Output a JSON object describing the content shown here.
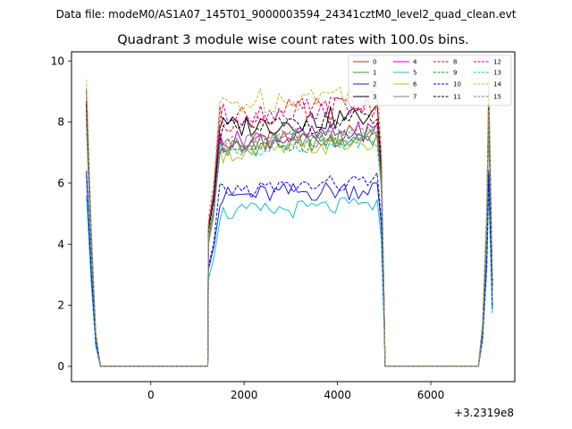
{
  "chart_data": {
    "type": "line",
    "suptitle": "Data file: modeM0/AS1A07_145T01_9000003594_24341cztM0_level2_quad_clean.evt",
    "title": "Quadrant 3 module wise count rates with 100.0s bins.",
    "xlabel": "",
    "ylabel": "",
    "x_offset_label": "+3.2319e8",
    "xlim": [
      -1700,
      7800
    ],
    "ylim": [
      -0.5,
      10.3
    ],
    "xticks": [
      0,
      2000,
      4000,
      6000
    ],
    "yticks": [
      0,
      2,
      4,
      6,
      8,
      10
    ],
    "xtick_labels": [
      "0",
      "2000",
      "4000",
      "6000"
    ],
    "ytick_labels": [
      "0",
      "2",
      "4",
      "6",
      "8",
      "10"
    ],
    "legend_position": "upper-right",
    "grid": false,
    "segments": [
      {
        "start": -1380,
        "end": -1080
      },
      {
        "start": 1220,
        "end": 5020
      },
      {
        "start": 7020,
        "end": 7320
      }
    ],
    "series": [
      {
        "name": "0",
        "color": "#d62728",
        "dash": false,
        "plateau": 7.5,
        "peak_a": 8.2,
        "peak_c": 8.5,
        "amp": 0.35
      },
      {
        "name": "1",
        "color": "#2ca02c",
        "dash": false,
        "plateau": 7.4,
        "peak_a": 8.0,
        "peak_c": 8.1,
        "amp": 0.35
      },
      {
        "name": "2",
        "color": "#1f1fd6",
        "dash": false,
        "plateau": 5.75,
        "peak_a": 6.3,
        "peak_c": 6.4,
        "amp": 0.35
      },
      {
        "name": "3",
        "color": "#000000",
        "dash": false,
        "plateau": 8.1,
        "peak_a": 8.7,
        "peak_c": 8.9,
        "amp": 0.4
      },
      {
        "name": "4",
        "color": "#bf00bf",
        "dash": false,
        "plateau": 7.6,
        "peak_a": 8.4,
        "peak_c": 8.3,
        "amp": 0.35
      },
      {
        "name": "5",
        "color": "#17becf",
        "dash": false,
        "plateau": 5.2,
        "peak_a": 5.6,
        "peak_c": 5.8,
        "amp": 0.3
      },
      {
        "name": "6",
        "color": "#bcbd22",
        "dash": false,
        "plateau": 7.2,
        "peak_a": 7.9,
        "peak_c": 8.0,
        "amp": 0.3
      },
      {
        "name": "7",
        "color": "#7f7f7f",
        "dash": false,
        "plateau": 7.5,
        "peak_a": 8.1,
        "peak_c": 8.2,
        "amp": 0.35
      },
      {
        "name": "8",
        "color": "#ff0000",
        "dash": true,
        "plateau": 8.4,
        "peak_a": 9.0,
        "peak_c": 9.2,
        "amp": 0.45
      },
      {
        "name": "9",
        "color": "#228b22",
        "dash": true,
        "plateau": 7.4,
        "peak_a": 8.0,
        "peak_c": 8.1,
        "amp": 0.35
      },
      {
        "name": "10",
        "color": "#0000ff",
        "dash": true,
        "plateau": 5.95,
        "peak_a": 6.4,
        "peak_c": 6.3,
        "amp": 0.3
      },
      {
        "name": "11",
        "color": "#000000",
        "dash": true,
        "plateau": 8.0,
        "peak_a": 8.6,
        "peak_c": 8.8,
        "amp": 0.35
      },
      {
        "name": "12",
        "color": "#bf00bf",
        "dash": true,
        "plateau": 8.5,
        "peak_a": 9.1,
        "peak_c": 9.2,
        "amp": 0.4
      },
      {
        "name": "13",
        "color": "#17becf",
        "dash": true,
        "plateau": 7.4,
        "peak_a": 8.0,
        "peak_c": 8.1,
        "amp": 0.35
      },
      {
        "name": "14",
        "color": "#bcbd22",
        "dash": true,
        "plateau": 8.9,
        "peak_a": 9.4,
        "peak_c": 9.6,
        "amp": 0.45
      },
      {
        "name": "15",
        "color": "#7f7f7f",
        "dash": true,
        "plateau": 7.6,
        "peak_a": 8.2,
        "peak_c": 8.3,
        "amp": 0.35
      }
    ]
  }
}
